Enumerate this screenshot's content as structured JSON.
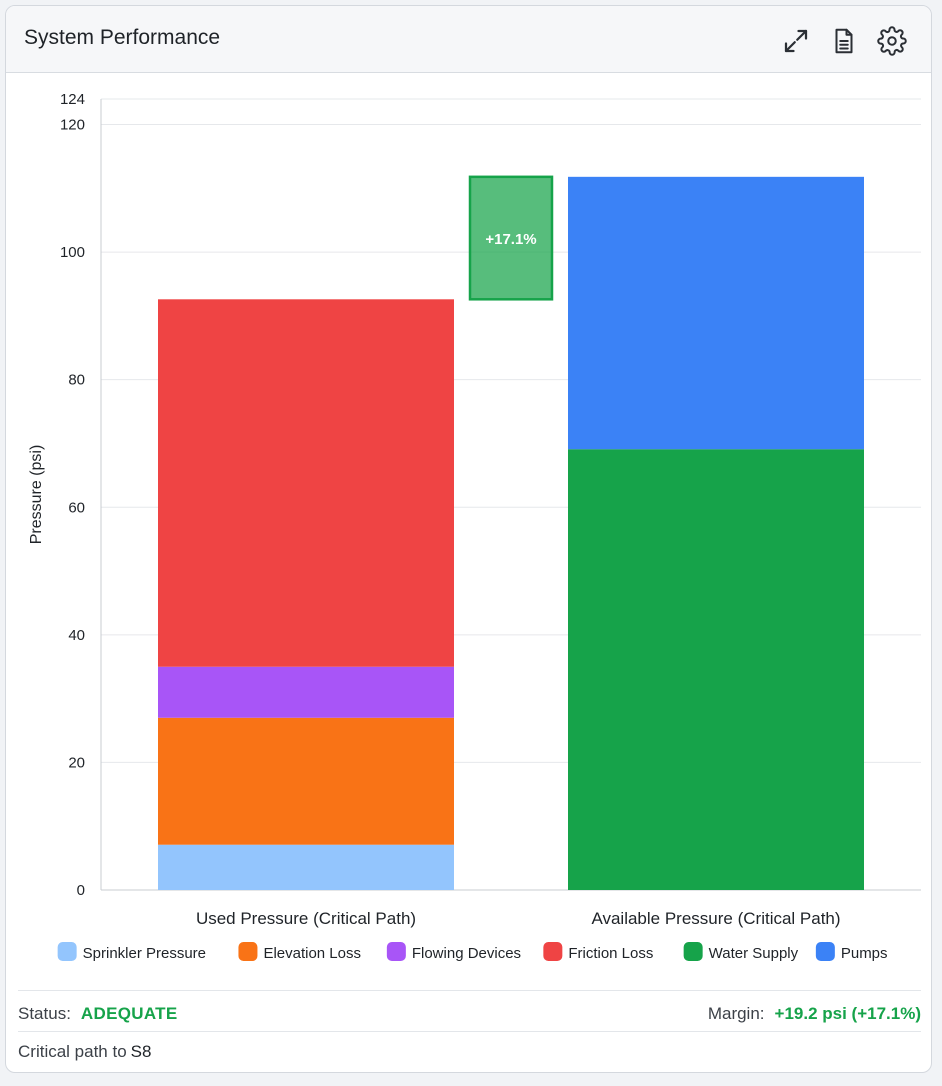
{
  "header": {
    "title": "System Performance",
    "icons": [
      "expand-icon",
      "document-icon",
      "gear-icon"
    ]
  },
  "chart_data": {
    "type": "bar",
    "stacked": true,
    "categories": [
      "Used Pressure (Critical Path)",
      "Available Pressure (Critical Path)"
    ],
    "series": [
      {
        "name": "Sprinkler Pressure",
        "color": "#93c5fd",
        "values": [
          7.1,
          0
        ]
      },
      {
        "name": "Elevation Loss",
        "color": "#f97316",
        "values": [
          19.9,
          0
        ]
      },
      {
        "name": "Flowing Devices",
        "color": "#a855f7",
        "values": [
          8.0,
          0
        ]
      },
      {
        "name": "Friction Loss",
        "color": "#ef4444",
        "values": [
          57.6,
          0
        ]
      },
      {
        "name": "Water Supply",
        "color": "#16a34a",
        "values": [
          0,
          69.1
        ]
      },
      {
        "name": "Pumps",
        "color": "#3b82f6",
        "values": [
          0,
          42.7
        ]
      }
    ],
    "margin_bar": {
      "label": "+17.1%",
      "from": 92.6,
      "to": 111.8,
      "color": "#16a34a"
    },
    "ylabel": "Pressure (psi)",
    "xlabel": "",
    "ylim": [
      0,
      124
    ],
    "yticks": [
      0,
      20,
      40,
      60,
      80,
      100,
      120,
      124
    ],
    "grid": true,
    "legend_position": "bottom"
  },
  "status": {
    "label": "Status:",
    "value": "ADEQUATE",
    "margin_label": "Margin:",
    "margin_value": "+19.2 psi (+17.1%)"
  },
  "critical_path": {
    "label": "Critical path to",
    "node": "S8"
  }
}
